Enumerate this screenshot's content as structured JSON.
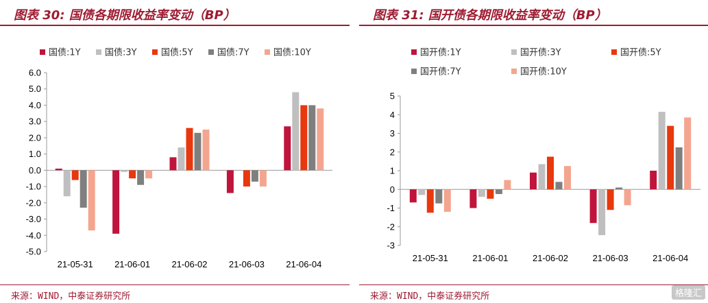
{
  "colors": {
    "1Y": "#c0143c",
    "3Y": "#bfbfbf",
    "5Y": "#e8380d",
    "7Y": "#7f7f7f",
    "10Y": "#f4a58f",
    "accent": "#9e1b32"
  },
  "watermark": "格隆汇",
  "charts": [
    {
      "title": "图表 30:  国债各期限收益率变动（BP）",
      "source": "来源：WIND，中泰证券研究所",
      "chart_data": {
        "type": "bar",
        "categories": [
          "21-05-31",
          "21-06-01",
          "21-06-02",
          "21-06-03",
          "21-06-04"
        ],
        "ylim": [
          -5.0,
          6.0
        ],
        "yticks": [
          "6.0",
          "5.0",
          "4.0",
          "3.0",
          "2.0",
          "1.0",
          "0.0",
          "-1.0",
          "-2.0",
          "-3.0",
          "-4.0",
          "-5.0"
        ],
        "ytick_values": [
          6,
          5,
          4,
          3,
          2,
          1,
          0,
          -1,
          -2,
          -3,
          -4,
          -5
        ],
        "legend_placement": "top",
        "series": [
          {
            "name": "国债:1Y",
            "key": "1Y",
            "values": [
              0.1,
              -3.9,
              0.8,
              -1.4,
              2.7
            ]
          },
          {
            "name": "国债:3Y",
            "key": "3Y",
            "values": [
              -1.6,
              -0.1,
              1.4,
              0.0,
              4.8
            ]
          },
          {
            "name": "国债:5Y",
            "key": "5Y",
            "values": [
              -0.6,
              -0.5,
              2.6,
              -1.0,
              4.0
            ]
          },
          {
            "name": "国债:7Y",
            "key": "7Y",
            "values": [
              -2.3,
              -0.9,
              2.3,
              -0.7,
              4.0
            ]
          },
          {
            "name": "国债:10Y",
            "key": "10Y",
            "values": [
              -3.7,
              -0.5,
              2.5,
              -1.0,
              3.8
            ]
          }
        ]
      }
    },
    {
      "title": "图表 31:  国开债各期限收益率变动（BP）",
      "source": "来源：WIND，中泰证券研究所",
      "chart_data": {
        "type": "bar",
        "categories": [
          "21-05-31",
          "21-06-01",
          "21-06-02",
          "21-06-03",
          "21-06-04"
        ],
        "ylim": [
          -3,
          5
        ],
        "yticks": [
          "5",
          "4",
          "3",
          "2",
          "1",
          "0",
          "-1",
          "-2",
          "-3"
        ],
        "ytick_values": [
          5,
          4,
          3,
          2,
          1,
          0,
          -1,
          -2,
          -3
        ],
        "legend_placement": "top",
        "series": [
          {
            "name": "国开债:1Y",
            "key": "1Y",
            "values": [
              -0.7,
              -1.0,
              0.9,
              -1.8,
              1.0
            ]
          },
          {
            "name": "国开债:3Y",
            "key": "3Y",
            "values": [
              -0.3,
              -0.4,
              1.35,
              -2.45,
              4.15
            ]
          },
          {
            "name": "国开债:5Y",
            "key": "5Y",
            "values": [
              -1.25,
              -0.5,
              1.75,
              -1.1,
              3.4
            ]
          },
          {
            "name": "国开债:7Y",
            "key": "7Y",
            "values": [
              -0.75,
              -0.25,
              0.4,
              0.1,
              2.25
            ]
          },
          {
            "name": "国开债:10Y",
            "key": "10Y",
            "values": [
              -1.2,
              0.5,
              1.25,
              -0.85,
              3.85
            ]
          }
        ]
      }
    }
  ]
}
